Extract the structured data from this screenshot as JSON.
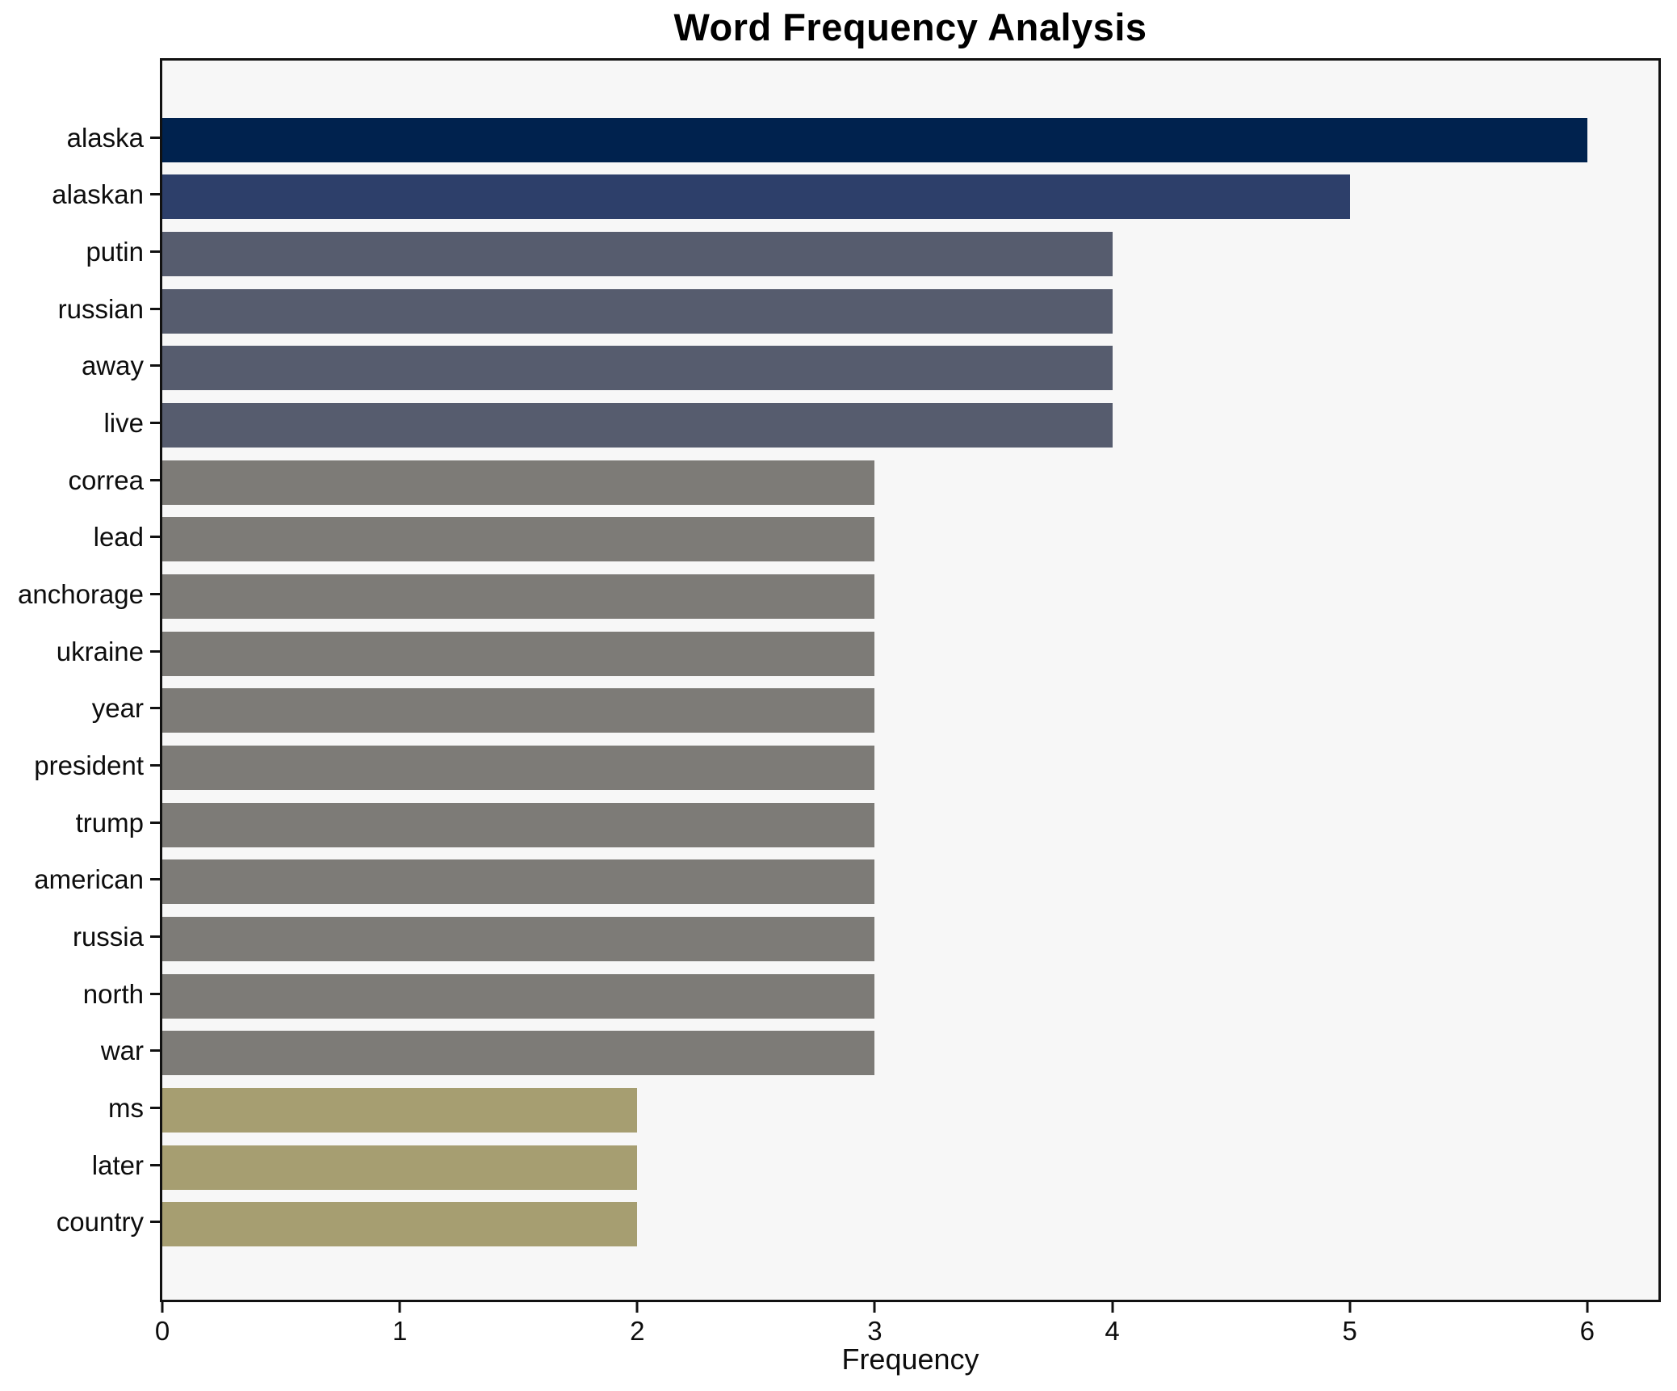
{
  "chart_data": {
    "type": "bar",
    "orientation": "horizontal",
    "title": "Word Frequency Analysis",
    "xlabel": "Frequency",
    "ylabel": "",
    "categories": [
      "alaska",
      "alaskan",
      "putin",
      "russian",
      "away",
      "live",
      "correa",
      "lead",
      "anchorage",
      "ukraine",
      "year",
      "president",
      "trump",
      "american",
      "russia",
      "north",
      "war",
      "ms",
      "later",
      "country"
    ],
    "values": [
      6,
      5,
      4,
      4,
      4,
      4,
      3,
      3,
      3,
      3,
      3,
      3,
      3,
      3,
      3,
      3,
      3,
      2,
      2,
      2
    ],
    "bar_colors": [
      "#00224e",
      "#2d3f6a",
      "#565c6e",
      "#565c6e",
      "#565c6e",
      "#565c6e",
      "#7d7b77",
      "#7d7b77",
      "#7d7b77",
      "#7d7b77",
      "#7d7b77",
      "#7d7b77",
      "#7d7b77",
      "#7d7b77",
      "#7d7b77",
      "#7d7b77",
      "#7d7b77",
      "#a69e71",
      "#a69e71",
      "#a69e71"
    ],
    "xticks": [
      0,
      1,
      2,
      3,
      4,
      5,
      6
    ],
    "xlim": [
      0,
      6.3
    ],
    "grid": false,
    "legend": "none",
    "plot_background": "#f7f7f7",
    "figure_background": "#ffffff",
    "spine_color": "#111111"
  }
}
